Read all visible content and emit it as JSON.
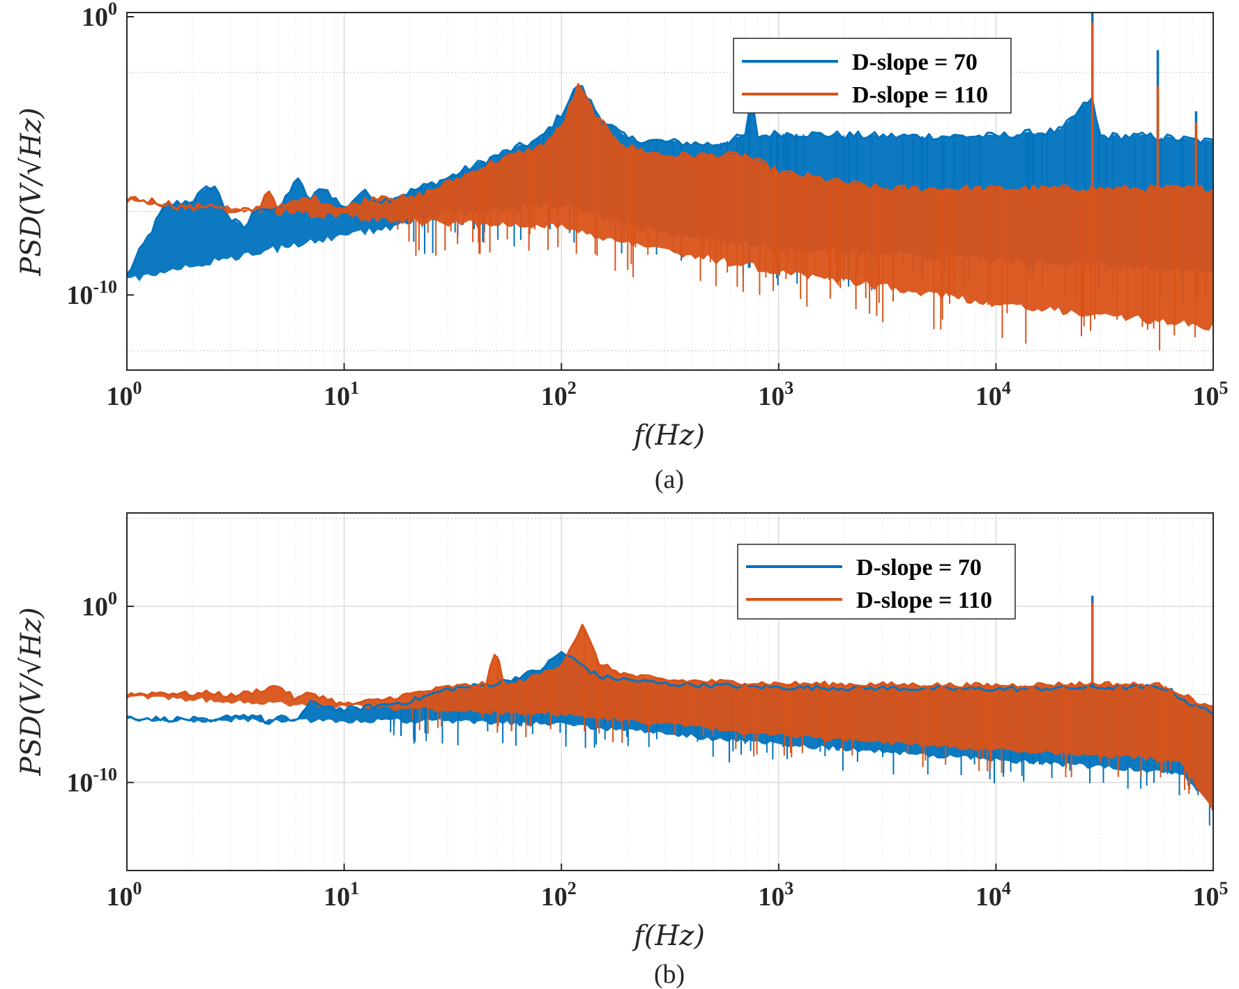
{
  "colors": {
    "series_1": "#0072BD",
    "series_2": "#D95319",
    "grid_major": "#d9d9d9",
    "grid_minor": "#e4e4e4",
    "axes": "#262626"
  },
  "chart_data": [
    {
      "type": "line",
      "panel": "a",
      "caption": "(a)",
      "xlabel": "f(Hz)",
      "ylabel": "PSD(V/√Hz)",
      "xscale": "log",
      "yscale": "log",
      "xlim": [
        1,
        100000
      ],
      "ylim_log10": [
        -12.7,
        0.15
      ],
      "xtick_labels": [
        {
          "base": "10",
          "exp": "0"
        },
        {
          "base": "10",
          "exp": "1"
        },
        {
          "base": "10",
          "exp": "2"
        },
        {
          "base": "10",
          "exp": "3"
        },
        {
          "base": "10",
          "exp": "4"
        },
        {
          "base": "10",
          "exp": "5"
        }
      ],
      "ytick_labels": [
        {
          "base": "10",
          "exp": "0"
        },
        {
          "base": "10",
          "exp": "-10"
        }
      ],
      "grid": true,
      "legend_position": "top-right",
      "series": [
        {
          "name": "D-slope = 70",
          "color": "#0072BD",
          "points": [
            [
              1,
              -9.3
            ],
            [
              1.5,
              -6.8
            ],
            [
              2,
              -6.6
            ],
            [
              2.5,
              -6.0
            ],
            [
              3,
              -7.3
            ],
            [
              3.5,
              -7.6
            ],
            [
              4,
              -6.8
            ],
            [
              5,
              -7.0
            ],
            [
              6,
              -5.8
            ],
            [
              7,
              -6.6
            ],
            [
              8,
              -6.1
            ],
            [
              10,
              -6.9
            ],
            [
              12,
              -6.3
            ],
            [
              15,
              -6.6
            ],
            [
              20,
              -6.3
            ],
            [
              30,
              -5.8
            ],
            [
              50,
              -5.0
            ],
            [
              80,
              -4.4
            ],
            [
              100,
              -3.5
            ],
            [
              120,
              -2.4
            ],
            [
              150,
              -3.6
            ],
            [
              200,
              -4.4
            ],
            [
              300,
              -4.5
            ],
            [
              500,
              -4.6
            ],
            [
              700,
              -4.3
            ],
            [
              750,
              -3.0
            ],
            [
              800,
              -4.3
            ],
            [
              1000,
              -4.2
            ],
            [
              3000,
              -4.3
            ],
            [
              10000,
              -4.3
            ],
            [
              20000,
              -4.1
            ],
            [
              27500,
              -2.9
            ],
            [
              30000,
              -4.3
            ],
            [
              50000,
              -4.3
            ],
            [
              100000,
              -4.5
            ]
          ],
          "noise_floor": [
            [
              1,
              -9.3
            ],
            [
              30,
              -7.0
            ],
            [
              100,
              -6.6
            ],
            [
              300,
              -7.7
            ],
            [
              1000,
              -8.2
            ],
            [
              10000,
              -8.6
            ],
            [
              100000,
              -9.0
            ]
          ],
          "spikes": [
            [
              27800,
              0.15
            ],
            [
              55600,
              -1.2
            ],
            [
              83400,
              -3.4
            ]
          ]
        },
        {
          "name": "D-slope = 110",
          "color": "#D95319",
          "points": [
            [
              1,
              -6.5
            ],
            [
              1.5,
              -6.7
            ],
            [
              2,
              -6.9
            ],
            [
              2.5,
              -6.7
            ],
            [
              3,
              -7.1
            ],
            [
              4,
              -6.9
            ],
            [
              4.5,
              -6.2
            ],
            [
              5,
              -6.9
            ],
            [
              7,
              -6.5
            ],
            [
              10,
              -6.9
            ],
            [
              15,
              -6.4
            ],
            [
              20,
              -6.6
            ],
            [
              30,
              -6.0
            ],
            [
              50,
              -5.2
            ],
            [
              80,
              -4.7
            ],
            [
              100,
              -4.0
            ],
            [
              120,
              -2.5
            ],
            [
              150,
              -3.8
            ],
            [
              200,
              -4.7
            ],
            [
              300,
              -5.0
            ],
            [
              500,
              -5.0
            ],
            [
              700,
              -5.0
            ],
            [
              1000,
              -5.6
            ],
            [
              3000,
              -6.2
            ],
            [
              10000,
              -6.2
            ],
            [
              30000,
              -6.2
            ],
            [
              100000,
              -6.2
            ]
          ],
          "noise_floor": [
            [
              1,
              -6.5
            ],
            [
              30,
              -7.3
            ],
            [
              100,
              -7.4
            ],
            [
              300,
              -8.3
            ],
            [
              1000,
              -9.0
            ],
            [
              10000,
              -10.2
            ],
            [
              100000,
              -11.0
            ]
          ],
          "spikes": [
            [
              27800,
              -0.2
            ],
            [
              55600,
              -2.5
            ],
            [
              83400,
              -3.8
            ]
          ]
        }
      ]
    },
    {
      "type": "line",
      "panel": "b",
      "caption": "(b)",
      "xlabel": "f(Hz)",
      "ylabel": "PSD(V/√Hz)",
      "xscale": "log",
      "yscale": "log",
      "xlim": [
        1,
        100000
      ],
      "ylim_log10": [
        -15,
        5.3
      ],
      "xtick_labels": [
        {
          "base": "10",
          "exp": "0"
        },
        {
          "base": "10",
          "exp": "1"
        },
        {
          "base": "10",
          "exp": "2"
        },
        {
          "base": "10",
          "exp": "3"
        },
        {
          "base": "10",
          "exp": "4"
        },
        {
          "base": "10",
          "exp": "5"
        }
      ],
      "ytick_labels": [
        {
          "base": "10",
          "exp": "0"
        },
        {
          "base": "10",
          "exp": "-10"
        }
      ],
      "grid": true,
      "legend_position": "top-right",
      "series": [
        {
          "name": "D-slope = 70",
          "color": "#0072BD",
          "points": [
            [
              1,
              -6.3
            ],
            [
              1.5,
              -6.4
            ],
            [
              2,
              -6.4
            ],
            [
              2.5,
              -6.6
            ],
            [
              3,
              -6.2
            ],
            [
              4,
              -6.2
            ],
            [
              4.5,
              -6.7
            ],
            [
              5,
              -6.3
            ],
            [
              6,
              -6.5
            ],
            [
              7,
              -5.5
            ],
            [
              8,
              -5.6
            ],
            [
              10,
              -5.9
            ],
            [
              15,
              -5.6
            ],
            [
              20,
              -5.4
            ],
            [
              30,
              -4.7
            ],
            [
              50,
              -4.4
            ],
            [
              80,
              -3.6
            ],
            [
              100,
              -2.6
            ],
            [
              110,
              -2.9
            ],
            [
              150,
              -4.0
            ],
            [
              300,
              -4.4
            ],
            [
              1000,
              -4.6
            ],
            [
              10000,
              -4.7
            ],
            [
              30000,
              -4.6
            ],
            [
              60000,
              -4.6
            ],
            [
              80000,
              -5.6
            ],
            [
              100000,
              -6.0
            ]
          ],
          "noise_floor": [
            [
              1,
              -6.3
            ],
            [
              30,
              -6.4
            ],
            [
              100,
              -6.6
            ],
            [
              1000,
              -7.7
            ],
            [
              10000,
              -8.6
            ],
            [
              70000,
              -9.3
            ],
            [
              100000,
              -11.2
            ]
          ],
          "spikes": [
            [
              27800,
              0.6
            ]
          ]
        },
        {
          "name": "D-slope = 110",
          "color": "#D95319",
          "points": [
            [
              1,
              -5.0
            ],
            [
              1.5,
              -4.9
            ],
            [
              2,
              -5.0
            ],
            [
              2.5,
              -4.9
            ],
            [
              3,
              -5.1
            ],
            [
              4,
              -4.8
            ],
            [
              5,
              -4.5
            ],
            [
              6,
              -5.3
            ],
            [
              7,
              -4.9
            ],
            [
              10,
              -5.6
            ],
            [
              15,
              -5.3
            ],
            [
              20,
              -5.0
            ],
            [
              30,
              -4.6
            ],
            [
              45,
              -4.4
            ],
            [
              50,
              -2.5
            ],
            [
              55,
              -4.6
            ],
            [
              80,
              -3.9
            ],
            [
              100,
              -3.3
            ],
            [
              125,
              -1.1
            ],
            [
              150,
              -3.3
            ],
            [
              200,
              -3.9
            ],
            [
              300,
              -4.2
            ],
            [
              1000,
              -4.4
            ],
            [
              10000,
              -4.5
            ],
            [
              30000,
              -4.4
            ],
            [
              60000,
              -4.5
            ],
            [
              80000,
              -5.3
            ],
            [
              100000,
              -5.8
            ]
          ],
          "noise_floor": [
            [
              1,
              -5.0
            ],
            [
              30,
              -5.8
            ],
            [
              100,
              -6.0
            ],
            [
              1000,
              -7.2
            ],
            [
              10000,
              -8.0
            ],
            [
              70000,
              -8.6
            ],
            [
              100000,
              -11.5
            ]
          ],
          "spikes": [
            [
              27800,
              0.2
            ]
          ]
        }
      ]
    }
  ]
}
